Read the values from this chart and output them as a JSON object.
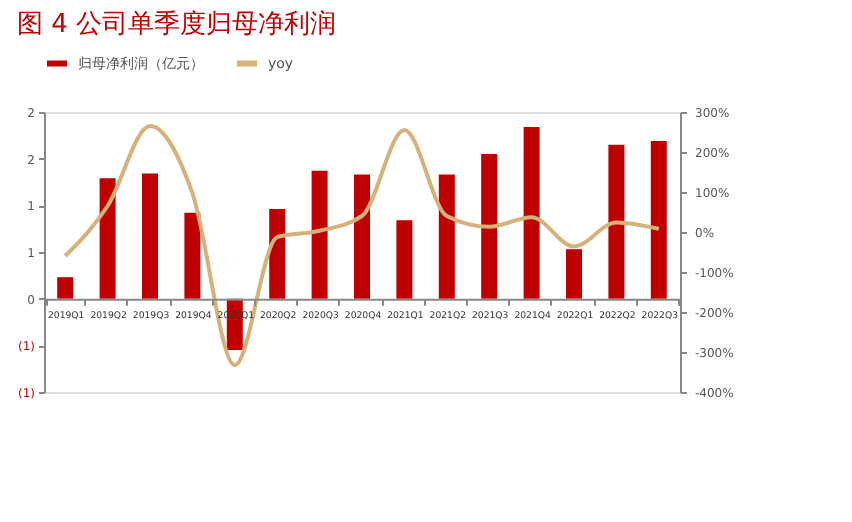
{
  "chart_data": {
    "type": "bar",
    "title": "图 4   公司单季度归母净利润",
    "categories": [
      "2019Q1",
      "2019Q2",
      "2019Q3",
      "2019Q4",
      "2020Q1",
      "2020Q2",
      "2020Q3",
      "2020Q4",
      "2021Q1",
      "2021Q2",
      "2021Q3",
      "2021Q4",
      "2022Q1",
      "2022Q2",
      "2022Q3"
    ],
    "series": [
      {
        "name": "归母净利润（亿元）",
        "color": "#c00000",
        "values": [
          0.23,
          1.29,
          1.34,
          0.92,
          -0.55,
          0.96,
          1.37,
          1.33,
          0.84,
          1.33,
          1.55,
          1.84,
          0.53,
          1.65,
          1.69
        ]
      },
      {
        "name": "yoy",
        "type": "line",
        "axis": "y2",
        "color": "#d6b17a",
        "values": [
          -60,
          65,
          265,
          97,
          -333,
          -13,
          3,
          40,
          255,
          40,
          13,
          37,
          -36,
          24,
          8
        ]
      }
    ],
    "ylim": [
      -1,
      2
    ],
    "yticks": [
      {
        "value": 2,
        "label": "2"
      },
      {
        "value": 1.5,
        "label": "2"
      },
      {
        "value": 1,
        "label": "1"
      },
      {
        "value": 0.5,
        "label": "1"
      },
      {
        "value": 0,
        "label": "0"
      },
      {
        "value": -0.5,
        "label": "(1)"
      },
      {
        "value": -1,
        "label": "(1)"
      }
    ],
    "y2lim": [
      -400,
      300
    ],
    "y2ticks": [
      {
        "value": 300,
        "label": "300%"
      },
      {
        "value": 200,
        "label": "200%"
      },
      {
        "value": 100,
        "label": "100%"
      },
      {
        "value": 0,
        "label": "0%"
      },
      {
        "value": -100,
        "label": "-100%"
      },
      {
        "value": -200,
        "label": "-200%"
      },
      {
        "value": -300,
        "label": "-300%"
      },
      {
        "value": -400,
        "label": "-400%"
      }
    ],
    "legend": "top",
    "grid": false
  }
}
